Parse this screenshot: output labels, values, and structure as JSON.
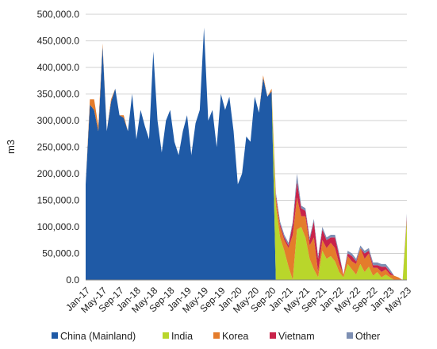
{
  "chart_data": {
    "type": "area",
    "stacked": true,
    "title": "",
    "xlabel": "",
    "ylabel": "m3",
    "ylim": [
      0,
      500000
    ],
    "yticks": [
      "0.0",
      "50,000.0",
      "100,000.0",
      "150,000.0",
      "200,000.0",
      "250,000.0",
      "300,000.0",
      "350,000.0",
      "400,000.0",
      "450,000.0",
      "500,000.0"
    ],
    "grid": true,
    "legend_position": "bottom",
    "x": [
      "Jan-17",
      "Feb-17",
      "Mar-17",
      "Apr-17",
      "May-17",
      "Jun-17",
      "Jul-17",
      "Aug-17",
      "Sep-17",
      "Oct-17",
      "Nov-17",
      "Dec-17",
      "Jan-18",
      "Feb-18",
      "Mar-18",
      "Apr-18",
      "May-18",
      "Jun-18",
      "Jul-18",
      "Aug-18",
      "Sep-18",
      "Oct-18",
      "Nov-18",
      "Dec-18",
      "Jan-19",
      "Feb-19",
      "Mar-19",
      "Apr-19",
      "May-19",
      "Jun-19",
      "Jul-19",
      "Aug-19",
      "Sep-19",
      "Oct-19",
      "Nov-19",
      "Dec-19",
      "Jan-20",
      "Feb-20",
      "Mar-20",
      "Apr-20",
      "May-20",
      "Jun-20",
      "Jul-20",
      "Aug-20",
      "Sep-20",
      "Oct-20",
      "Nov-20",
      "Dec-20",
      "Jan-21",
      "Feb-21",
      "Mar-21",
      "Apr-21",
      "May-21",
      "Jun-21",
      "Jul-21",
      "Aug-21",
      "Sep-21",
      "Oct-21",
      "Nov-21",
      "Dec-21",
      "Jan-22",
      "Feb-22",
      "Mar-22",
      "Apr-22",
      "May-22",
      "Jun-22",
      "Jul-22",
      "Aug-22",
      "Sep-22",
      "Oct-22",
      "Nov-22",
      "Dec-22",
      "Jan-23",
      "Feb-23",
      "Mar-23",
      "Apr-23",
      "May-23"
    ],
    "xtick_labels": [
      "Jan-17",
      "May-17",
      "Sep-17",
      "Jan-18",
      "May-18",
      "Sep-18",
      "Jan-19",
      "May-19",
      "Sep-19",
      "Jan-20",
      "May-20",
      "Sep-20",
      "Jan-21",
      "May-21",
      "Sep-21",
      "Jan-22",
      "May-22",
      "Sep-22",
      "Jan-23",
      "May-23"
    ],
    "series": [
      {
        "name": "China (Mainland)",
        "color": "#1f5aa6",
        "values": [
          180000,
          330000,
          320000,
          280000,
          440000,
          280000,
          335000,
          360000,
          310000,
          305000,
          280000,
          350000,
          265000,
          320000,
          290000,
          265000,
          430000,
          300000,
          240000,
          300000,
          320000,
          260000,
          235000,
          280000,
          310000,
          235000,
          295000,
          320000,
          475000,
          300000,
          320000,
          250000,
          350000,
          320000,
          345000,
          280000,
          180000,
          200000,
          270000,
          260000,
          345000,
          315000,
          380000,
          345000,
          355000,
          0,
          0,
          0,
          0,
          0,
          0,
          0,
          0,
          0,
          0,
          0,
          0,
          0,
          0,
          0,
          0,
          0,
          0,
          0,
          0,
          0,
          0,
          0,
          0,
          0,
          0,
          0,
          0,
          0,
          0,
          0,
          0
        ]
      },
      {
        "name": "India",
        "color": "#b9d62b",
        "values": [
          0,
          0,
          0,
          0,
          0,
          0,
          0,
          0,
          0,
          0,
          0,
          0,
          0,
          0,
          0,
          0,
          0,
          0,
          0,
          0,
          0,
          0,
          0,
          0,
          0,
          0,
          0,
          0,
          0,
          0,
          0,
          0,
          0,
          0,
          0,
          0,
          0,
          0,
          0,
          0,
          0,
          0,
          0,
          0,
          0,
          140000,
          80000,
          55000,
          25000,
          0,
          95000,
          100000,
          80000,
          40000,
          20000,
          5000,
          55000,
          40000,
          45000,
          35000,
          15000,
          5000,
          30000,
          20000,
          10000,
          30000,
          15000,
          25000,
          8000,
          15000,
          5000,
          10000,
          5000,
          0,
          0,
          0,
          110000
        ]
      },
      {
        "name": "Korea",
        "color": "#e47c2b",
        "values": [
          0,
          10000,
          20000,
          10000,
          5000,
          0,
          5000,
          0,
          0,
          5000,
          0,
          0,
          0,
          0,
          0,
          0,
          0,
          0,
          0,
          0,
          0,
          0,
          0,
          0,
          0,
          0,
          0,
          0,
          0,
          0,
          0,
          0,
          0,
          0,
          0,
          0,
          0,
          0,
          0,
          0,
          0,
          0,
          5000,
          0,
          5000,
          15000,
          20000,
          20000,
          35000,
          85000,
          60000,
          20000,
          40000,
          25000,
          60000,
          10000,
          20000,
          20000,
          25000,
          25000,
          15000,
          5000,
          15000,
          15000,
          20000,
          30000,
          25000,
          25000,
          15000,
          8000,
          10000,
          10000,
          5000,
          8000,
          5000,
          0,
          5000
        ]
      },
      {
        "name": "Vietnam",
        "color": "#c9234a",
        "values": [
          0,
          0,
          0,
          0,
          0,
          0,
          0,
          0,
          0,
          0,
          0,
          0,
          0,
          0,
          0,
          0,
          0,
          0,
          0,
          0,
          0,
          0,
          0,
          0,
          0,
          0,
          0,
          0,
          0,
          0,
          0,
          0,
          0,
          0,
          0,
          0,
          0,
          0,
          0,
          0,
          0,
          0,
          0,
          0,
          0,
          5000,
          5000,
          5000,
          5000,
          20000,
          30000,
          15000,
          10000,
          10000,
          30000,
          25000,
          20000,
          15000,
          10000,
          20000,
          15000,
          0,
          5000,
          10000,
          5000,
          0,
          10000,
          5000,
          5000,
          5000,
          10000,
          5000,
          5000,
          0,
          0,
          0,
          5000
        ]
      },
      {
        "name": "Other",
        "color": "#7d8fb3",
        "values": [
          0,
          0,
          0,
          0,
          0,
          0,
          0,
          0,
          0,
          0,
          0,
          0,
          0,
          0,
          0,
          0,
          0,
          0,
          0,
          0,
          0,
          0,
          0,
          0,
          0,
          0,
          0,
          0,
          0,
          0,
          0,
          0,
          0,
          0,
          0,
          0,
          0,
          0,
          0,
          0,
          0,
          0,
          0,
          0,
          0,
          5000,
          5000,
          5000,
          5000,
          5000,
          15000,
          5000,
          5000,
          5000,
          5000,
          5000,
          5000,
          5000,
          5000,
          5000,
          5000,
          0,
          5000,
          5000,
          5000,
          5000,
          5000,
          5000,
          5000,
          5000,
          5000,
          5000,
          5000,
          0,
          0,
          0,
          5000
        ]
      }
    ]
  }
}
